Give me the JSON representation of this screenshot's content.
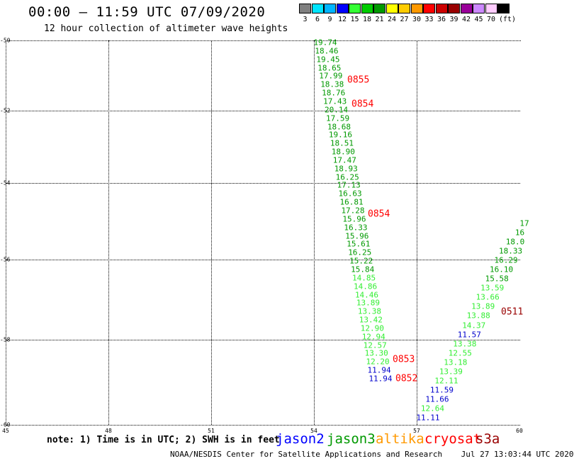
{
  "header": {
    "title": "00:00 – 11:59 UTC 07/09/2020",
    "subtitle": "12 hour collection of altimeter wave heights"
  },
  "legend": {
    "unit": "(ft)",
    "items": [
      {
        "label": "3",
        "color": "#808080"
      },
      {
        "label": "6",
        "color": "#00e5ff"
      },
      {
        "label": "9",
        "color": "#00b4ff"
      },
      {
        "label": "12",
        "color": "#0000ff"
      },
      {
        "label": "15",
        "color": "#33ff33"
      },
      {
        "label": "18",
        "color": "#00cc00"
      },
      {
        "label": "21",
        "color": "#009900"
      },
      {
        "label": "24",
        "color": "#ffff00"
      },
      {
        "label": "27",
        "color": "#ffcc00"
      },
      {
        "label": "30",
        "color": "#ff9900"
      },
      {
        "label": "33",
        "color": "#ff0000"
      },
      {
        "label": "36",
        "color": "#cc0000"
      },
      {
        "label": "39",
        "color": "#990000"
      },
      {
        "label": "42",
        "color": "#990099"
      },
      {
        "label": "45",
        "color": "#cc88ff"
      },
      {
        "label": "70",
        "color": "#ffccff"
      },
      {
        "label": "",
        "color": "#000000"
      }
    ]
  },
  "axes": {
    "x_ticks": [
      "45",
      "48",
      "51",
      "54",
      "57",
      "60"
    ],
    "y_ticks": [
      "-50",
      "-52",
      "-54",
      "-56",
      "-58",
      "-60"
    ]
  },
  "colors": {
    "dark_green": "#009900",
    "light_green": "#33ee33",
    "blue": "#0000cc",
    "red": "#ff0000",
    "dark_red": "#990000"
  },
  "track1": [
    {
      "v": "19.74",
      "c": "dark_green"
    },
    {
      "v": "18.46",
      "c": "dark_green"
    },
    {
      "v": "19.45",
      "c": "dark_green"
    },
    {
      "v": "18.65",
      "c": "dark_green"
    },
    {
      "v": "17.99",
      "c": "dark_green"
    },
    {
      "v": "18.38",
      "c": "dark_green"
    },
    {
      "v": "18.76",
      "c": "dark_green"
    },
    {
      "v": "17.43",
      "c": "dark_green"
    },
    {
      "v": "20.14",
      "c": "dark_green"
    },
    {
      "v": "17.59",
      "c": "dark_green"
    },
    {
      "v": "18.68",
      "c": "dark_green"
    },
    {
      "v": "19.16",
      "c": "dark_green"
    },
    {
      "v": "18.51",
      "c": "dark_green"
    },
    {
      "v": "18.90",
      "c": "dark_green"
    },
    {
      "v": "17.47",
      "c": "dark_green"
    },
    {
      "v": "18.93",
      "c": "dark_green"
    },
    {
      "v": "16.25",
      "c": "dark_green"
    },
    {
      "v": "17.13",
      "c": "dark_green"
    },
    {
      "v": "16.63",
      "c": "dark_green"
    },
    {
      "v": "16.81",
      "c": "dark_green"
    },
    {
      "v": "17.28",
      "c": "dark_green"
    },
    {
      "v": "15.96",
      "c": "dark_green"
    },
    {
      "v": "16.33",
      "c": "dark_green"
    },
    {
      "v": "15.96",
      "c": "dark_green"
    },
    {
      "v": "15.61",
      "c": "dark_green"
    },
    {
      "v": "16.25",
      "c": "dark_green"
    },
    {
      "v": "15.22",
      "c": "dark_green"
    },
    {
      "v": "15.84",
      "c": "dark_green"
    },
    {
      "v": "14.85",
      "c": "light_green"
    },
    {
      "v": "14.86",
      "c": "light_green"
    },
    {
      "v": "14.46",
      "c": "light_green"
    },
    {
      "v": "13.89",
      "c": "light_green"
    },
    {
      "v": "13.38",
      "c": "light_green"
    },
    {
      "v": "13.42",
      "c": "light_green"
    },
    {
      "v": "12.90",
      "c": "light_green"
    },
    {
      "v": "12.94",
      "c": "light_green"
    },
    {
      "v": "12.57",
      "c": "light_green"
    },
    {
      "v": "13.30",
      "c": "light_green"
    },
    {
      "v": "12.20",
      "c": "light_green"
    },
    {
      "v": "11.94",
      "c": "blue"
    },
    {
      "v": "11.94",
      "c": "blue"
    }
  ],
  "track2": [
    {
      "v": "17",
      "c": "dark_green"
    },
    {
      "v": "16",
      "c": "dark_green"
    },
    {
      "v": "18.0",
      "c": "dark_green"
    },
    {
      "v": "18.33",
      "c": "dark_green"
    },
    {
      "v": "16.29",
      "c": "dark_green"
    },
    {
      "v": "16.10",
      "c": "dark_green"
    },
    {
      "v": "15.58",
      "c": "dark_green"
    },
    {
      "v": "13.59",
      "c": "light_green"
    },
    {
      "v": "13.66",
      "c": "light_green"
    },
    {
      "v": "13.89",
      "c": "light_green"
    },
    {
      "v": "13.88",
      "c": "light_green"
    },
    {
      "v": "14.37",
      "c": "light_green"
    },
    {
      "v": "11.57",
      "c": "blue"
    },
    {
      "v": "13.38",
      "c": "light_green"
    },
    {
      "v": "12.55",
      "c": "light_green"
    },
    {
      "v": "13.18",
      "c": "light_green"
    },
    {
      "v": "13.39",
      "c": "light_green"
    },
    {
      "v": "12.11",
      "c": "light_green"
    },
    {
      "v": "11.59",
      "c": "blue"
    },
    {
      "v": "11.66",
      "c": "blue"
    },
    {
      "v": "12.64",
      "c": "light_green"
    },
    {
      "v": "11.11",
      "c": "blue"
    }
  ],
  "rev_labels": [
    {
      "text": "0855",
      "c": "red"
    },
    {
      "text": "0854",
      "c": "red"
    },
    {
      "text": "0854",
      "c": "red"
    },
    {
      "text": "0853",
      "c": "red"
    },
    {
      "text": "0852",
      "c": "red"
    },
    {
      "text": "0511",
      "c": "dark_red"
    }
  ],
  "note": "note: 1) Time is in UTC; 2) SWH is in feet",
  "satellites": [
    {
      "name": "jason2",
      "color": "#0000ff"
    },
    {
      "name": "jason3",
      "color": "#009900"
    },
    {
      "name": "altika",
      "color": "#ff9900"
    },
    {
      "name": "cryosat",
      "color": "#ff0000"
    },
    {
      "name": "s3a",
      "color": "#990000"
    }
  ],
  "footer": "NOAA/NESDIS Center for Satellite Applications and Research    Jul 27 13:03:44 UTC 2020"
}
